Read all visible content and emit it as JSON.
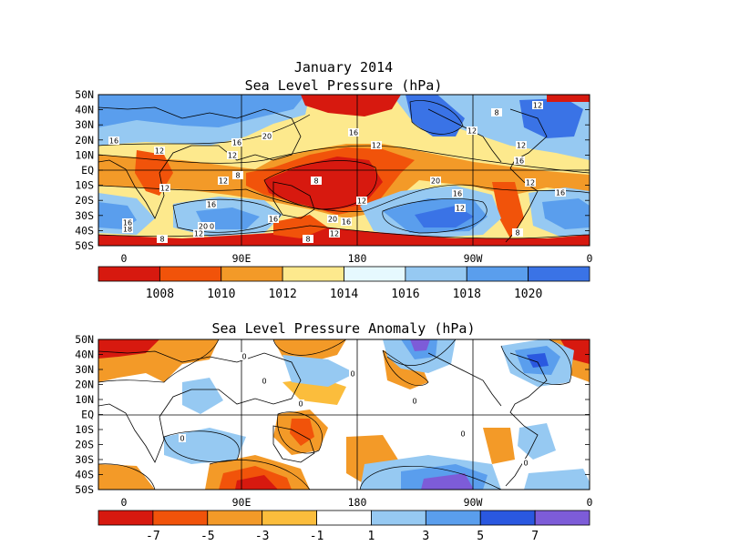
{
  "top_panel": {
    "title_line1": "January 2014",
    "title_line2": "Sea Level Pressure (hPa)",
    "lat_labels": [
      "50N",
      "40N",
      "30N",
      "20N",
      "10N",
      "EQ",
      "10S",
      "20S",
      "30S",
      "40S",
      "50S"
    ],
    "lon_labels": [
      "0",
      "90E",
      "180",
      "90W",
      "0"
    ],
    "colorbar": {
      "colors": [
        "#d7190f",
        "#f1530a",
        "#f39a28",
        "#fde98d",
        "#e6f9fe",
        "#96c9f2",
        "#5a9eed",
        "#3a73e6"
      ],
      "labels": [
        "1008",
        "1010",
        "1012",
        "1014",
        "1016",
        "1018",
        "1020"
      ]
    },
    "contour_labels": [
      "16",
      "12",
      "20",
      "16",
      "12",
      "16",
      "12",
      "8",
      "12",
      "16",
      "20",
      "8",
      "12",
      "16",
      "20",
      "12",
      "16",
      "20",
      "12",
      "8",
      "12",
      "12",
      "16",
      "12",
      "16",
      "8",
      "18",
      "20",
      "16",
      "16",
      "12",
      "8",
      "12",
      "8",
      "12"
    ]
  },
  "bottom_panel": {
    "title": "Sea Level Pressure Anomaly (hPa)",
    "lat_labels": [
      "50N",
      "40N",
      "30N",
      "20N",
      "10N",
      "EQ",
      "10S",
      "20S",
      "30S",
      "40S",
      "50S"
    ],
    "lon_labels": [
      "0",
      "90E",
      "180",
      "90W",
      "0"
    ],
    "colorbar": {
      "colors": [
        "#d7190f",
        "#f1530a",
        "#f39a28",
        "#fbbd3c",
        "#ffffff",
        "#96c9f2",
        "#5a9eed",
        "#2a58e0",
        "#7d5cd8"
      ],
      "labels": [
        "-7",
        "-5",
        "-3",
        "-1",
        "1",
        "3",
        "5",
        "7"
      ]
    },
    "contour_labels": [
      "0",
      "0",
      "0",
      "0",
      "0",
      "0",
      "0",
      "0"
    ]
  }
}
